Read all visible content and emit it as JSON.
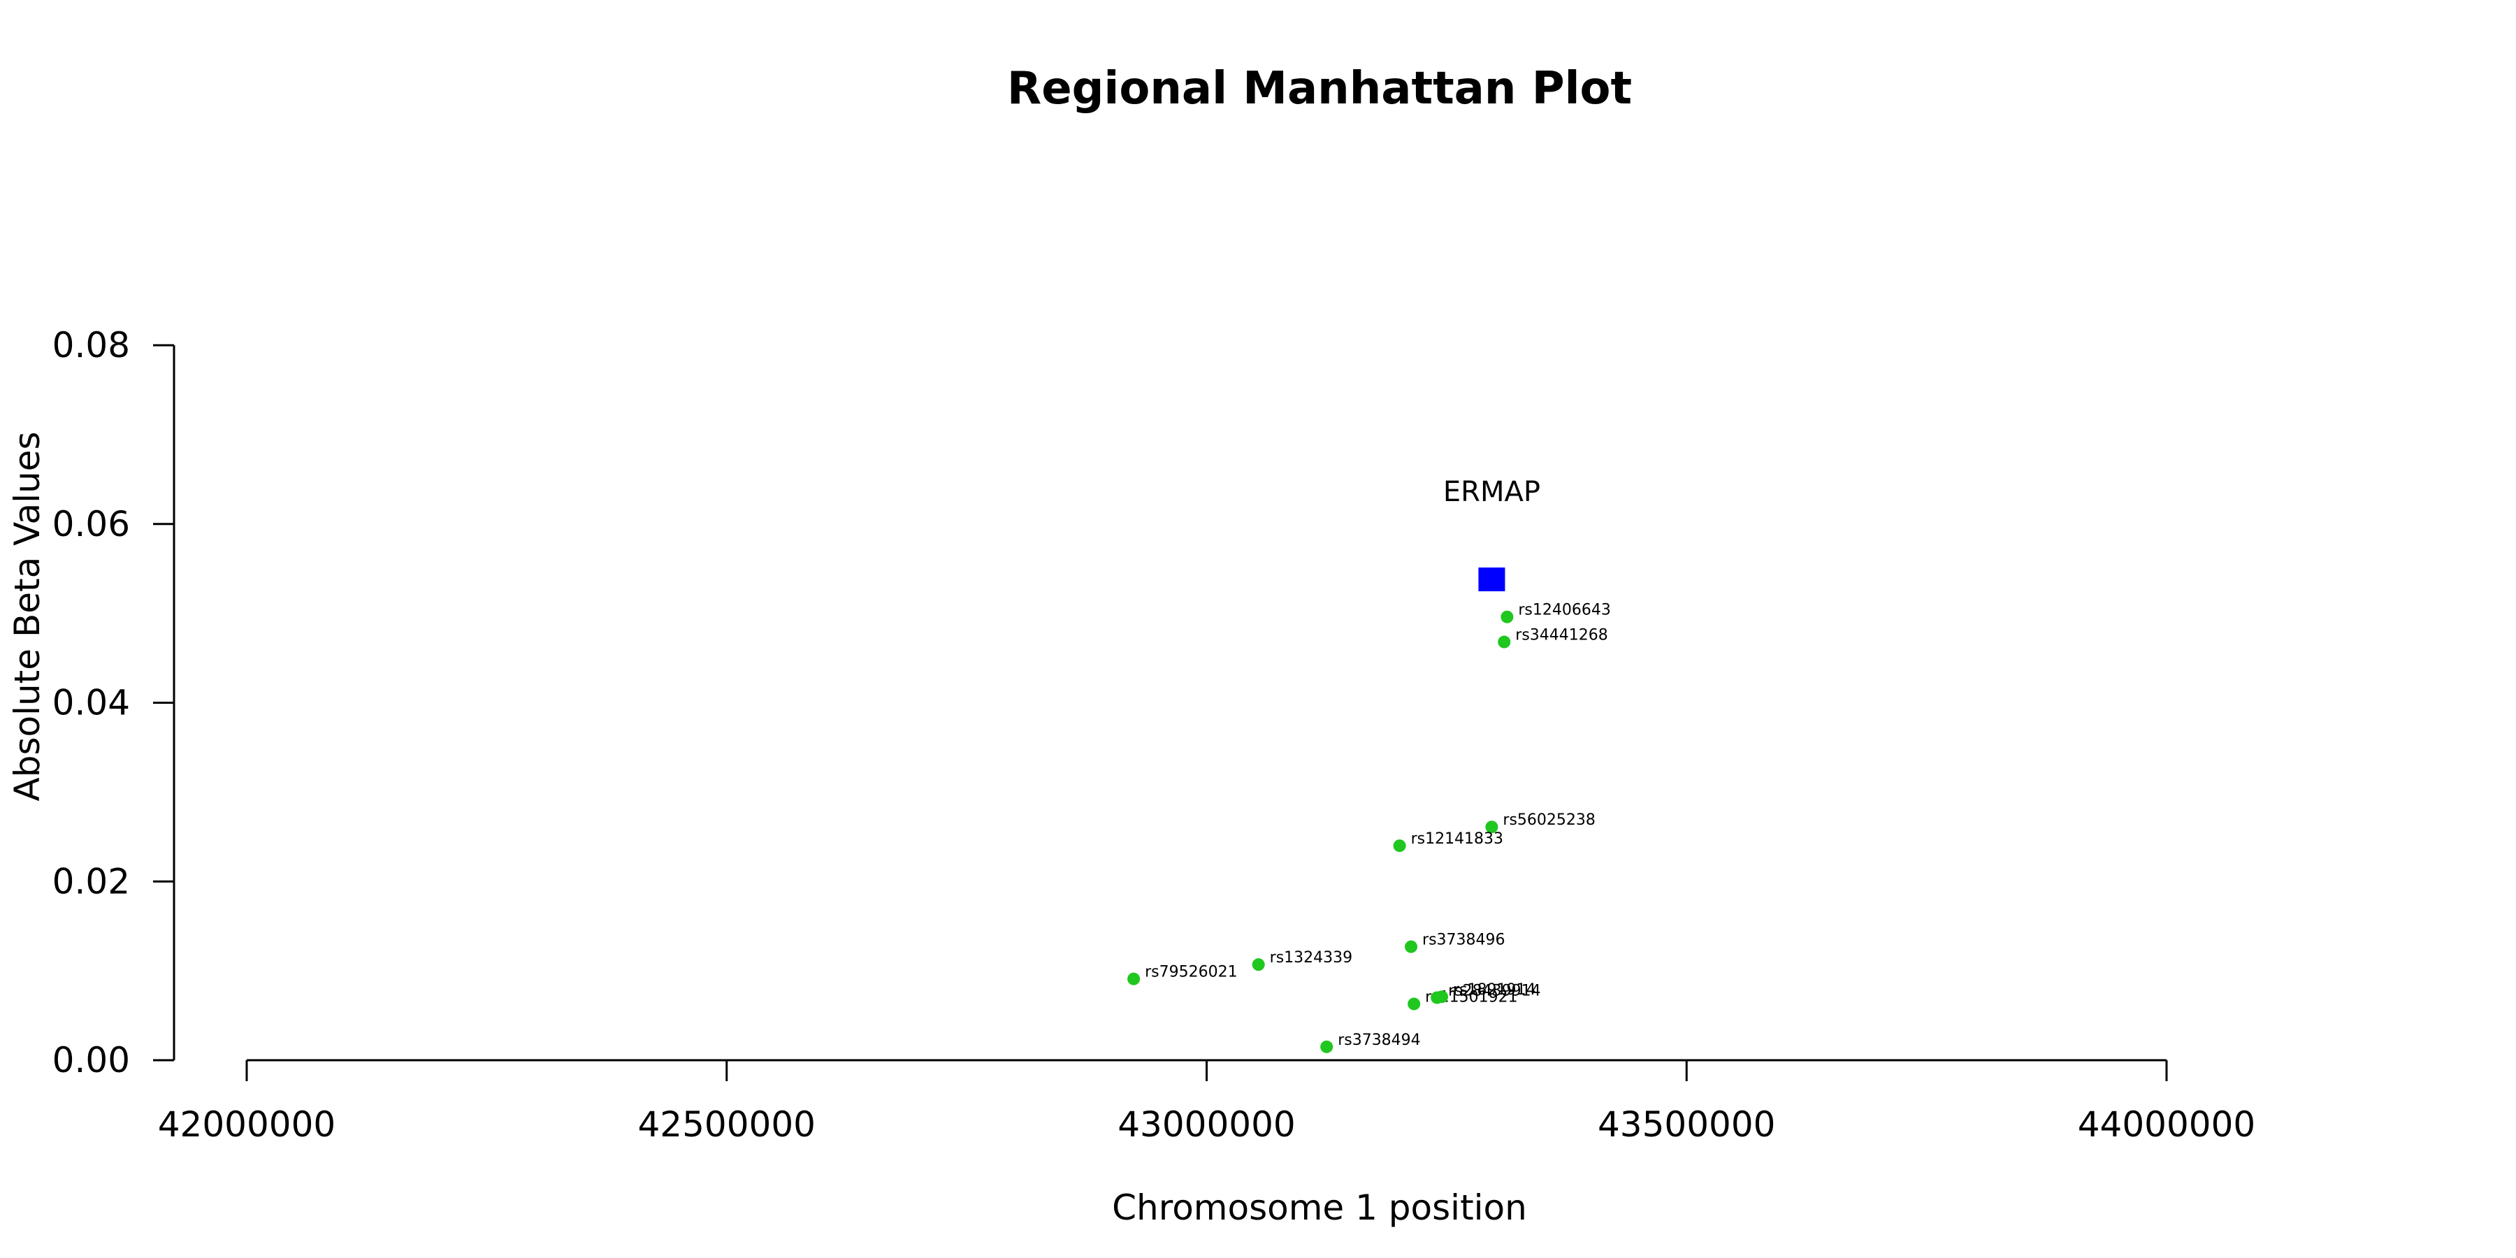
{
  "chart_data": {
    "type": "scatter",
    "title": "Regional Manhattan Plot",
    "xlabel": "Chromosome 1 position",
    "ylabel": "Absolute Beta Values",
    "xlim": [
      42000000,
      44000000
    ],
    "ylim": [
      0,
      0.08
    ],
    "x_ticks": [
      42000000,
      42500000,
      43000000,
      43500000,
      44000000
    ],
    "y_ticks": [
      0.0,
      0.02,
      0.04,
      0.06,
      0.08
    ],
    "x_tick_labels": [
      "42000000",
      "42500000",
      "43000000",
      "43500000",
      "44000000"
    ],
    "y_tick_labels": [
      "0.00",
      "0.02",
      "0.04",
      "0.06",
      "0.08"
    ],
    "grid": false,
    "colors": {
      "snp": "#1fc71f",
      "gene": "#0000ff",
      "axis": "#000000"
    },
    "gene": {
      "label": "ERMAP",
      "x": 43297000,
      "y": 0.0538
    },
    "points": [
      {
        "label": "rs12406643",
        "x": 43313000,
        "y": 0.0496
      },
      {
        "label": "rs34441268",
        "x": 43310000,
        "y": 0.0468
      },
      {
        "label": "rs56025238",
        "x": 43297000,
        "y": 0.0261
      },
      {
        "label": "rs12141833",
        "x": 43201000,
        "y": 0.024
      },
      {
        "label": "rs3738496",
        "x": 43213000,
        "y": 0.0127
      },
      {
        "label": "rs1324339",
        "x": 43054000,
        "y": 0.0107
      },
      {
        "label": "rs79526021",
        "x": 42924000,
        "y": 0.0091
      },
      {
        "label": "rs11501921",
        "x": 43216000,
        "y": 0.0063
      },
      {
        "label": "rs28439914",
        "x": 43240000,
        "y": 0.007
      },
      {
        "label": "rs1891914",
        "x": 43245000,
        "y": 0.0071
      },
      {
        "label": "rs3738494",
        "x": 43125000,
        "y": 0.0015
      }
    ]
  }
}
